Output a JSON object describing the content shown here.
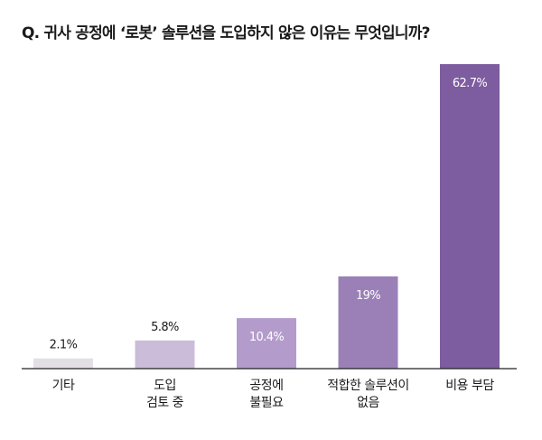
{
  "chart_data": {
    "type": "bar",
    "title": "Q. 귀사 공정에 ‘로봇’ 솔루션을 도입하지 않은 이유는 무엇입니까?",
    "categories": [
      [
        "기타"
      ],
      [
        "도입",
        "검토 중"
      ],
      [
        "공정에",
        "불필요"
      ],
      [
        "적합한 솔루션이",
        "없음"
      ],
      [
        "비용 부담"
      ]
    ],
    "values": [
      2.1,
      5.8,
      10.4,
      19,
      62.7
    ],
    "value_labels": [
      "2.1%",
      "5.8%",
      "10.4%",
      "19%",
      "62.7%"
    ],
    "colors": [
      "#e2e0e4",
      "#cbbcd9",
      "#b39ccb",
      "#9b80b8",
      "#7d5c9f"
    ],
    "label_inside_bar": [
      false,
      false,
      true,
      true,
      true
    ],
    "ylim": [
      0,
      62.7
    ],
    "grid": false,
    "legend": "none"
  }
}
